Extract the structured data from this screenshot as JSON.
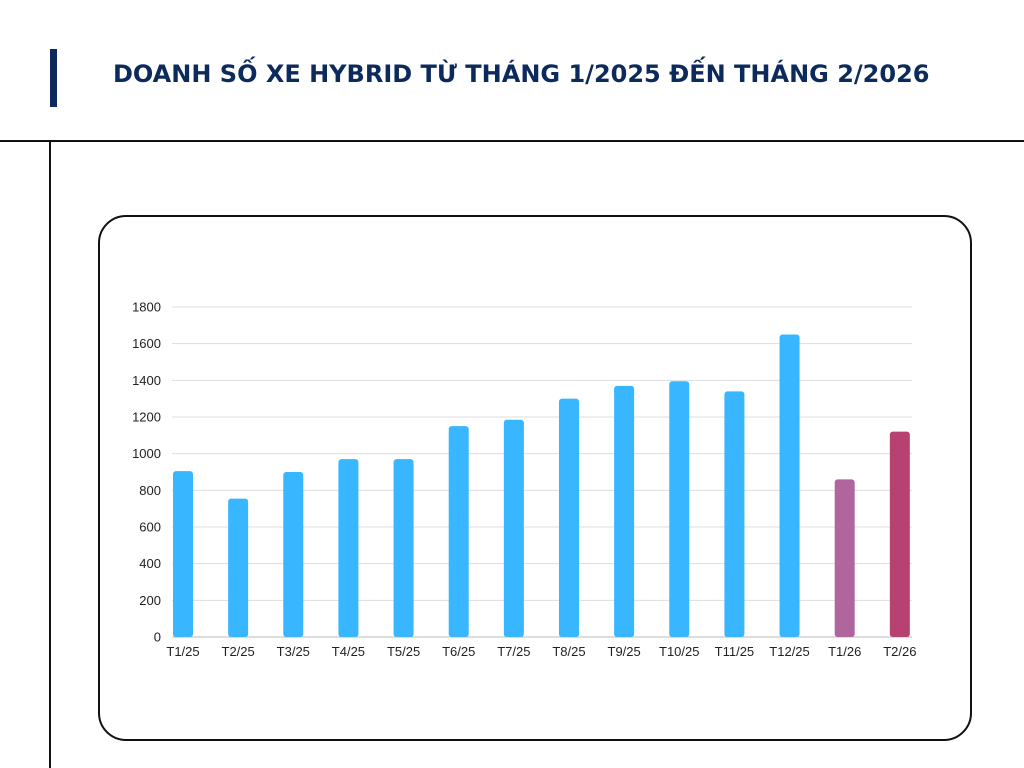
{
  "title": "DOANH SỐ XE HYBRID TỪ THÁNG 1/2025 ĐẾN THÁNG 2/2026",
  "colors": {
    "title": "#0d2a5c",
    "bar_2025": "#38b6ff",
    "bar_t1_26": "#b0659c",
    "bar_t2_26": "#b74170",
    "grid": "#dddddd"
  },
  "chart_data": {
    "type": "bar",
    "title": "",
    "xlabel": "",
    "ylabel": "",
    "categories": [
      "T1/25",
      "T2/25",
      "T3/25",
      "T4/25",
      "T5/25",
      "T6/25",
      "T7/25",
      "T8/25",
      "T9/25",
      "T10/25",
      "T11/25",
      "T12/25",
      "T1/26",
      "T2/26"
    ],
    "values": [
      905,
      755,
      900,
      970,
      970,
      1150,
      1185,
      1300,
      1370,
      1395,
      1340,
      1650,
      860,
      1120
    ],
    "bar_colors": [
      "#38b6ff",
      "#38b6ff",
      "#38b6ff",
      "#38b6ff",
      "#38b6ff",
      "#38b6ff",
      "#38b6ff",
      "#38b6ff",
      "#38b6ff",
      "#38b6ff",
      "#38b6ff",
      "#38b6ff",
      "#b0659c",
      "#b74170"
    ],
    "ylim": [
      0,
      1800
    ],
    "yticks": [
      "0",
      "200",
      "400",
      "600",
      "800",
      "1000",
      "1200",
      "1400",
      "1600",
      "1800"
    ],
    "grid": true,
    "legend": "none"
  }
}
